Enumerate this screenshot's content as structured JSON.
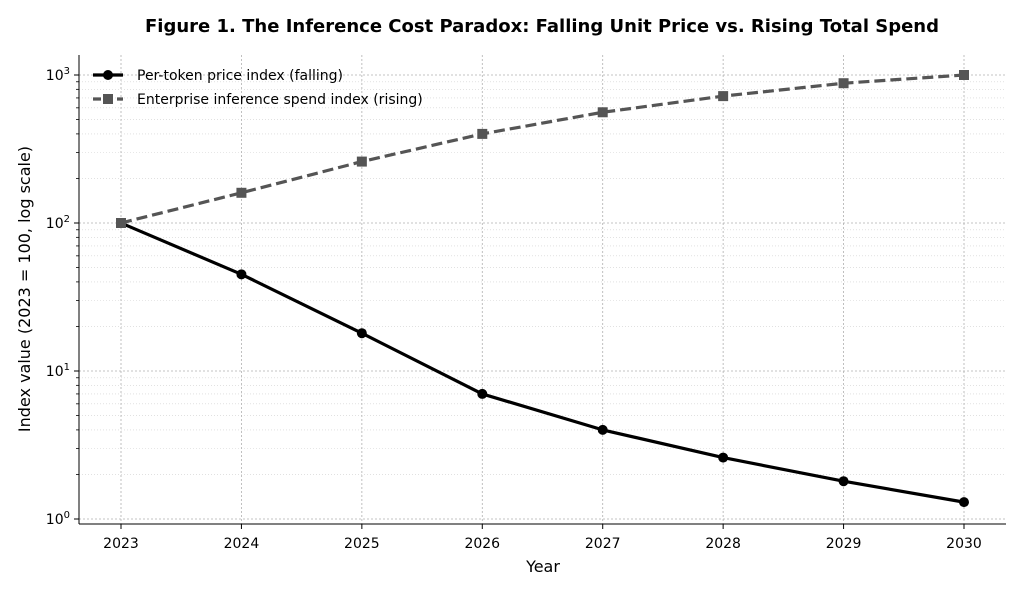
{
  "chart_data": {
    "type": "line",
    "title": "Figure 1. The Inference Cost Paradox: Falling Unit Price vs. Rising Total Spend",
    "xlabel": "Year",
    "ylabel": "Index value (2023 = 100, log scale)",
    "x": [
      2023,
      2024,
      2025,
      2026,
      2027,
      2028,
      2029,
      2030
    ],
    "yscale": "log",
    "ylim": [
      1,
      1000
    ],
    "yticks": [
      1,
      10,
      100,
      1000
    ],
    "ytick_labels": [
      {
        "base": "10",
        "exp": "0"
      },
      {
        "base": "10",
        "exp": "1"
      },
      {
        "base": "10",
        "exp": "2"
      },
      {
        "base": "10",
        "exp": "3"
      }
    ],
    "grid": true,
    "legend_position": "top-left",
    "series": [
      {
        "name": "Per-token price index (falling)",
        "values": [
          100,
          45,
          18,
          7,
          4,
          2.6,
          1.8,
          1.3
        ],
        "color": "#000000",
        "line_style": "solid",
        "marker": "circle"
      },
      {
        "name": "Enterprise inference spend index (rising)",
        "values": [
          100,
          160,
          260,
          400,
          560,
          720,
          880,
          1000
        ],
        "color": "#555555",
        "line_style": "dashed",
        "marker": "square"
      }
    ]
  }
}
